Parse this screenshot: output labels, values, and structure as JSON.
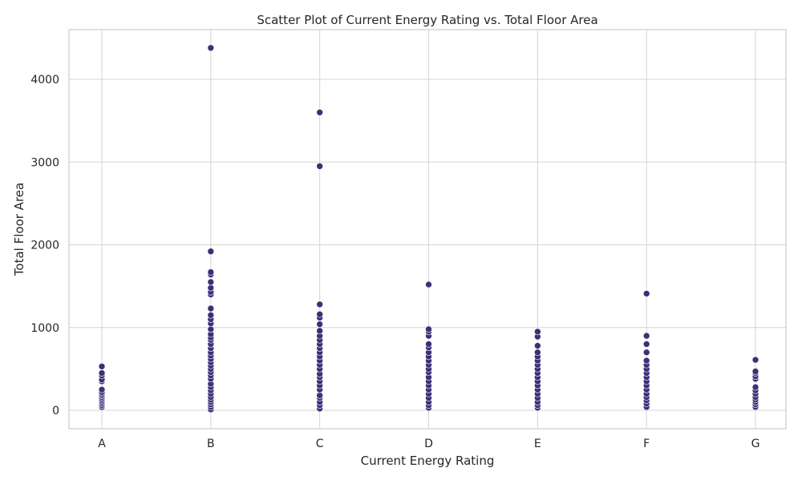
{
  "chart_data": {
    "type": "scatter",
    "title": "Scatter Plot of Current Energy Rating vs. Total Floor Area",
    "xlabel": "Current Energy Rating",
    "ylabel": "Total Floor Area",
    "categories": [
      "A",
      "B",
      "C",
      "D",
      "E",
      "F",
      "G"
    ],
    "yticks": [
      0,
      1000,
      2000,
      3000,
      4000
    ],
    "ylim": [
      -220,
      4600
    ],
    "grid": true,
    "marker_color": "#3f2f78",
    "series": [
      {
        "points": [
          {
            "x": "A",
            "y": 40
          },
          {
            "x": "A",
            "y": 60
          },
          {
            "x": "A",
            "y": 80
          },
          {
            "x": "A",
            "y": 100
          },
          {
            "x": "A",
            "y": 120
          },
          {
            "x": "A",
            "y": 140
          },
          {
            "x": "A",
            "y": 160
          },
          {
            "x": "A",
            "y": 180
          },
          {
            "x": "A",
            "y": 200
          },
          {
            "x": "A",
            "y": 220
          },
          {
            "x": "A",
            "y": 250
          },
          {
            "x": "A",
            "y": 350
          },
          {
            "x": "A",
            "y": 370
          },
          {
            "x": "A",
            "y": 420
          },
          {
            "x": "A",
            "y": 450
          },
          {
            "x": "A",
            "y": 530
          },
          {
            "x": "B",
            "y": 10
          },
          {
            "x": "B",
            "y": 40
          },
          {
            "x": "B",
            "y": 70
          },
          {
            "x": "B",
            "y": 100
          },
          {
            "x": "B",
            "y": 130
          },
          {
            "x": "B",
            "y": 160
          },
          {
            "x": "B",
            "y": 200
          },
          {
            "x": "B",
            "y": 240
          },
          {
            "x": "B",
            "y": 280
          },
          {
            "x": "B",
            "y": 320
          },
          {
            "x": "B",
            "y": 380
          },
          {
            "x": "B",
            "y": 420
          },
          {
            "x": "B",
            "y": 460
          },
          {
            "x": "B",
            "y": 500
          },
          {
            "x": "B",
            "y": 540
          },
          {
            "x": "B",
            "y": 580
          },
          {
            "x": "B",
            "y": 620
          },
          {
            "x": "B",
            "y": 660
          },
          {
            "x": "B",
            "y": 700
          },
          {
            "x": "B",
            "y": 750
          },
          {
            "x": "B",
            "y": 800
          },
          {
            "x": "B",
            "y": 850
          },
          {
            "x": "B",
            "y": 880
          },
          {
            "x": "B",
            "y": 920
          },
          {
            "x": "B",
            "y": 980
          },
          {
            "x": "B",
            "y": 1050
          },
          {
            "x": "B",
            "y": 1100
          },
          {
            "x": "B",
            "y": 1150
          },
          {
            "x": "B",
            "y": 1230
          },
          {
            "x": "B",
            "y": 1400
          },
          {
            "x": "B",
            "y": 1430
          },
          {
            "x": "B",
            "y": 1480
          },
          {
            "x": "B",
            "y": 1550
          },
          {
            "x": "B",
            "y": 1640
          },
          {
            "x": "B",
            "y": 1670
          },
          {
            "x": "B",
            "y": 1920
          },
          {
            "x": "B",
            "y": 4380
          },
          {
            "x": "C",
            "y": 20
          },
          {
            "x": "C",
            "y": 60
          },
          {
            "x": "C",
            "y": 100
          },
          {
            "x": "C",
            "y": 150
          },
          {
            "x": "C",
            "y": 180
          },
          {
            "x": "C",
            "y": 250
          },
          {
            "x": "C",
            "y": 300
          },
          {
            "x": "C",
            "y": 350
          },
          {
            "x": "C",
            "y": 400
          },
          {
            "x": "C",
            "y": 440
          },
          {
            "x": "C",
            "y": 500
          },
          {
            "x": "C",
            "y": 550
          },
          {
            "x": "C",
            "y": 600
          },
          {
            "x": "C",
            "y": 650
          },
          {
            "x": "C",
            "y": 700
          },
          {
            "x": "C",
            "y": 750
          },
          {
            "x": "C",
            "y": 800
          },
          {
            "x": "C",
            "y": 850
          },
          {
            "x": "C",
            "y": 900
          },
          {
            "x": "C",
            "y": 960
          },
          {
            "x": "C",
            "y": 1040
          },
          {
            "x": "C",
            "y": 1120
          },
          {
            "x": "C",
            "y": 1160
          },
          {
            "x": "C",
            "y": 1280
          },
          {
            "x": "C",
            "y": 2950
          },
          {
            "x": "C",
            "y": 3600
          },
          {
            "x": "D",
            "y": 30
          },
          {
            "x": "D",
            "y": 60
          },
          {
            "x": "D",
            "y": 100
          },
          {
            "x": "D",
            "y": 150
          },
          {
            "x": "D",
            "y": 200
          },
          {
            "x": "D",
            "y": 250
          },
          {
            "x": "D",
            "y": 300
          },
          {
            "x": "D",
            "y": 350
          },
          {
            "x": "D",
            "y": 400
          },
          {
            "x": "D",
            "y": 460
          },
          {
            "x": "D",
            "y": 500
          },
          {
            "x": "D",
            "y": 550
          },
          {
            "x": "D",
            "y": 600
          },
          {
            "x": "D",
            "y": 650
          },
          {
            "x": "D",
            "y": 700
          },
          {
            "x": "D",
            "y": 760
          },
          {
            "x": "D",
            "y": 800
          },
          {
            "x": "D",
            "y": 900
          },
          {
            "x": "D",
            "y": 950
          },
          {
            "x": "D",
            "y": 980
          },
          {
            "x": "D",
            "y": 1520
          },
          {
            "x": "E",
            "y": 30
          },
          {
            "x": "E",
            "y": 60
          },
          {
            "x": "E",
            "y": 100
          },
          {
            "x": "E",
            "y": 150
          },
          {
            "x": "E",
            "y": 200
          },
          {
            "x": "E",
            "y": 250
          },
          {
            "x": "E",
            "y": 300
          },
          {
            "x": "E",
            "y": 350
          },
          {
            "x": "E",
            "y": 400
          },
          {
            "x": "E",
            "y": 450
          },
          {
            "x": "E",
            "y": 500
          },
          {
            "x": "E",
            "y": 550
          },
          {
            "x": "E",
            "y": 600
          },
          {
            "x": "E",
            "y": 650
          },
          {
            "x": "E",
            "y": 700
          },
          {
            "x": "E",
            "y": 780
          },
          {
            "x": "E",
            "y": 890
          },
          {
            "x": "E",
            "y": 950
          },
          {
            "x": "F",
            "y": 40
          },
          {
            "x": "F",
            "y": 80
          },
          {
            "x": "F",
            "y": 120
          },
          {
            "x": "F",
            "y": 160
          },
          {
            "x": "F",
            "y": 200
          },
          {
            "x": "F",
            "y": 250
          },
          {
            "x": "F",
            "y": 300
          },
          {
            "x": "F",
            "y": 350
          },
          {
            "x": "F",
            "y": 400
          },
          {
            "x": "F",
            "y": 450
          },
          {
            "x": "F",
            "y": 500
          },
          {
            "x": "F",
            "y": 550
          },
          {
            "x": "F",
            "y": 600
          },
          {
            "x": "F",
            "y": 700
          },
          {
            "x": "F",
            "y": 800
          },
          {
            "x": "F",
            "y": 900
          },
          {
            "x": "F",
            "y": 1410
          },
          {
            "x": "G",
            "y": 40
          },
          {
            "x": "G",
            "y": 70
          },
          {
            "x": "G",
            "y": 100
          },
          {
            "x": "G",
            "y": 130
          },
          {
            "x": "G",
            "y": 160
          },
          {
            "x": "G",
            "y": 200
          },
          {
            "x": "G",
            "y": 240
          },
          {
            "x": "G",
            "y": 280
          },
          {
            "x": "G",
            "y": 380
          },
          {
            "x": "G",
            "y": 410
          },
          {
            "x": "G",
            "y": 450
          },
          {
            "x": "G",
            "y": 470
          },
          {
            "x": "G",
            "y": 610
          }
        ]
      }
    ]
  }
}
